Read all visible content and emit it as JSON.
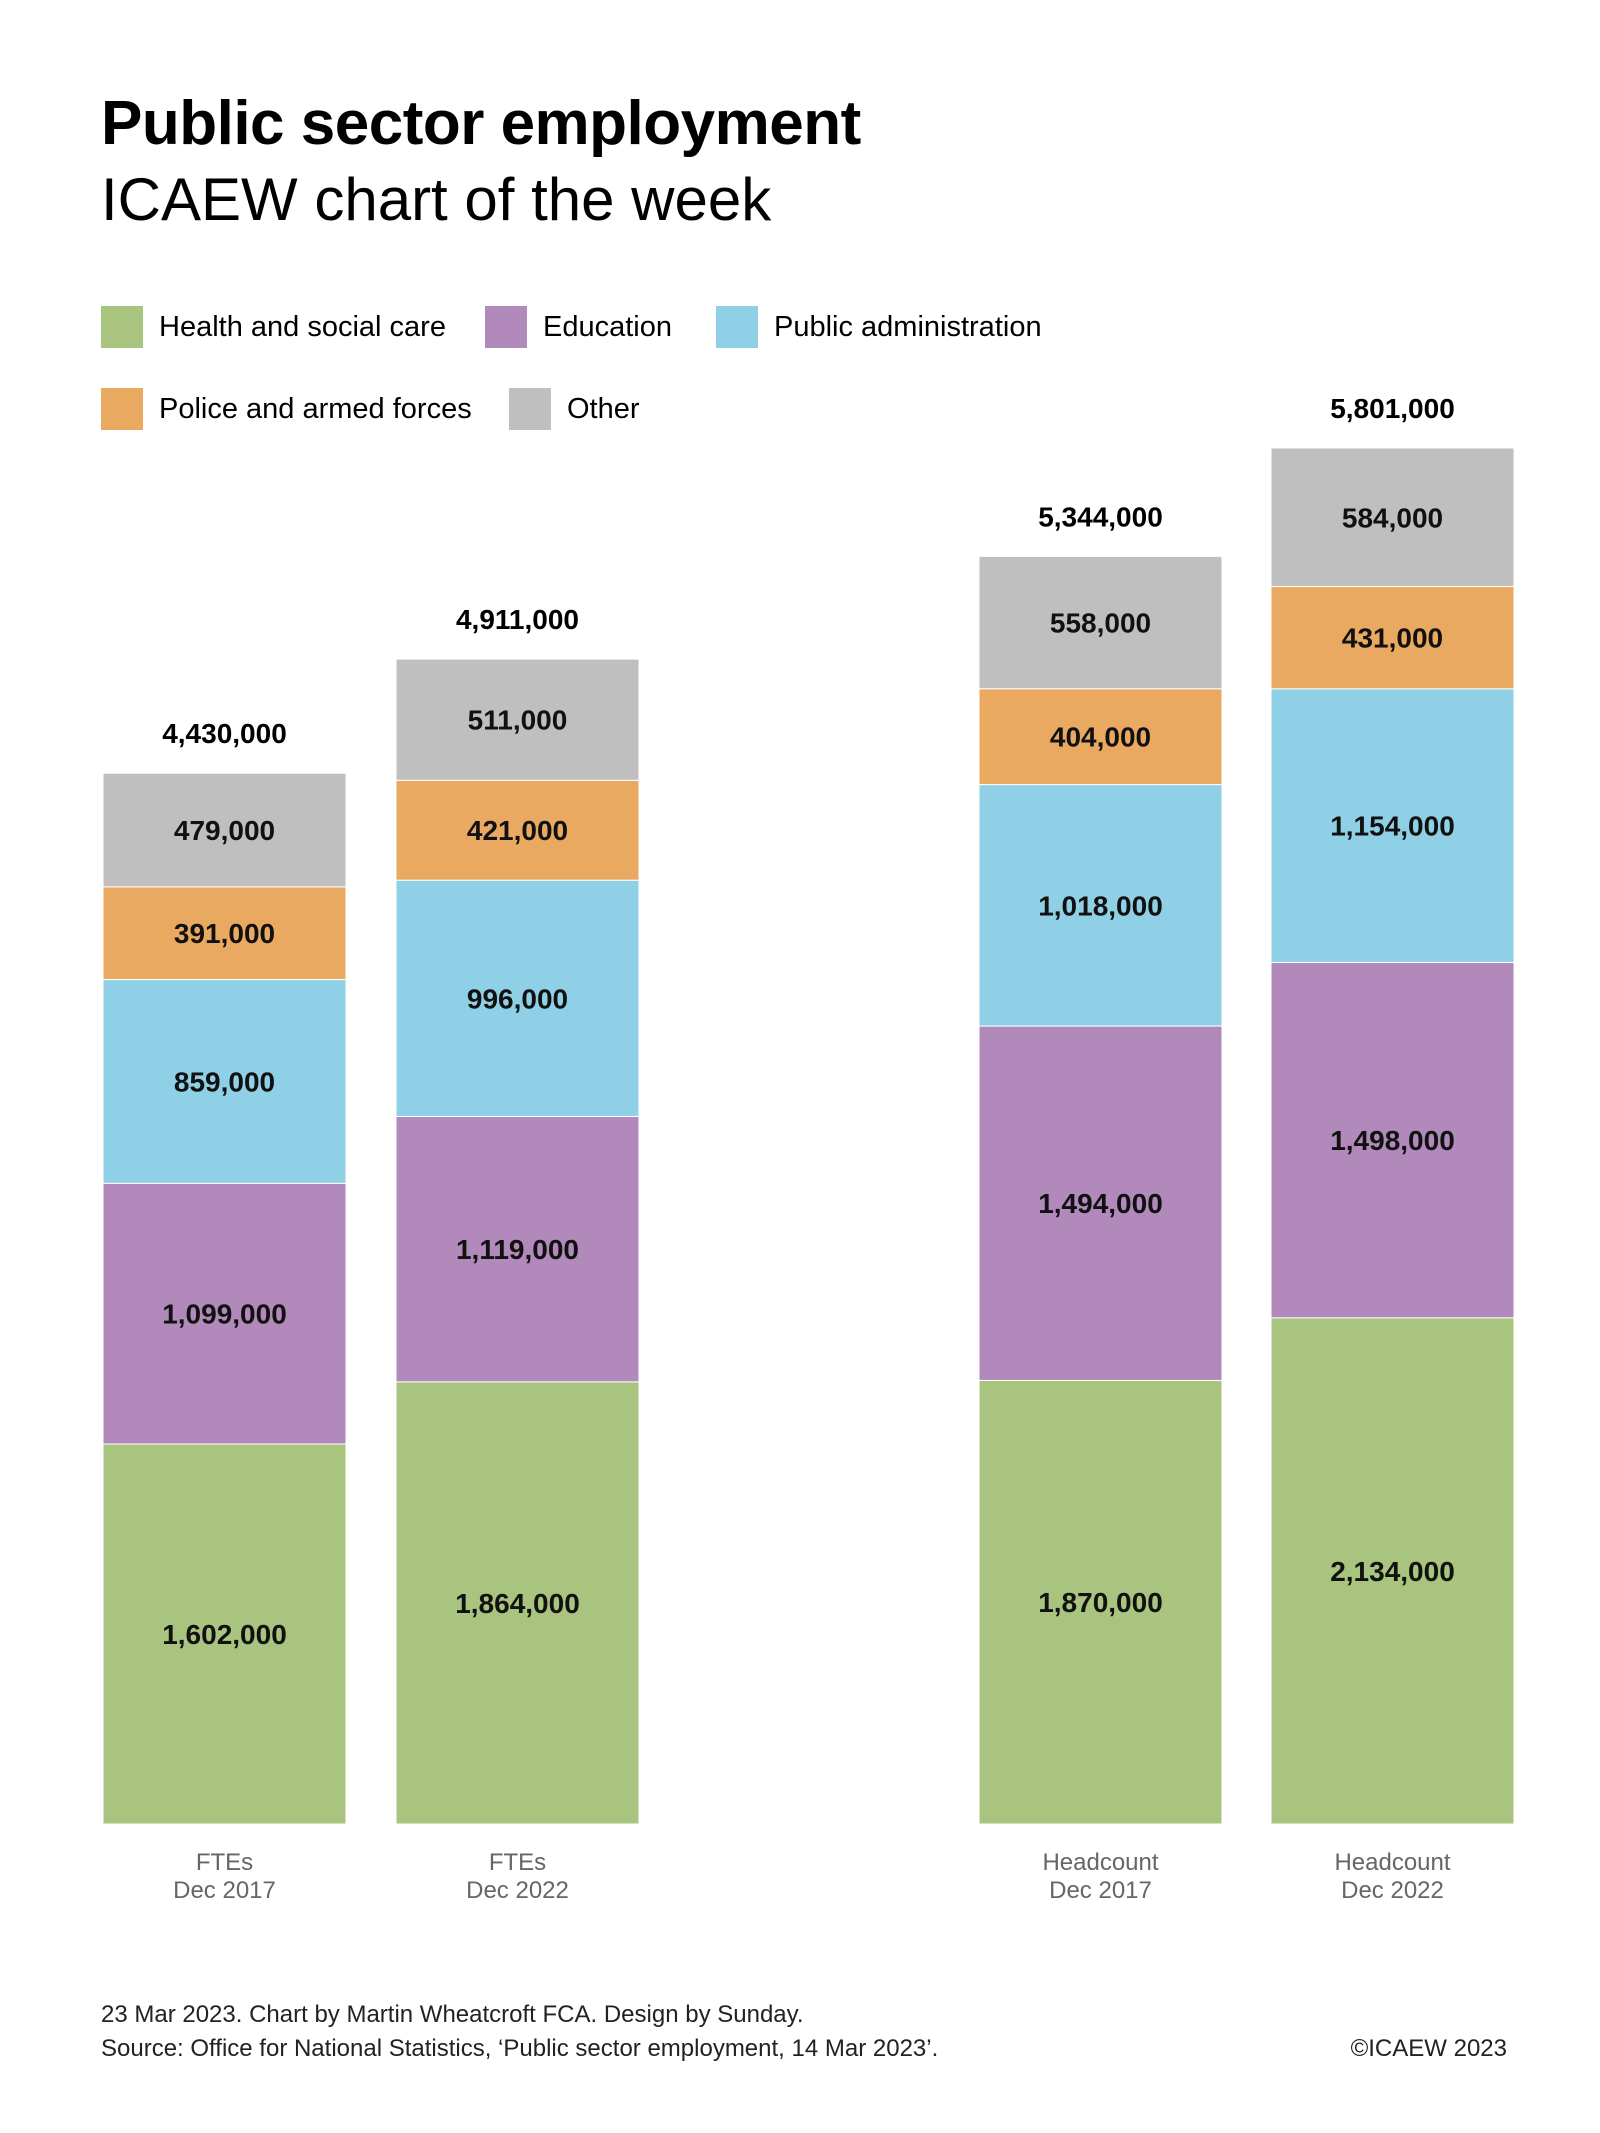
{
  "header": {
    "title": "Public sector employment",
    "subtitle": "ICAEW chart of the week"
  },
  "footer": {
    "line1": "23 Mar 2023.   Chart by Martin Wheatcroft FCA. Design by Sunday.",
    "line2": "Source: Office for National Statistics, ‘Public sector employment, 14 Mar 2023’.",
    "copyright": "©ICAEW 2023"
  },
  "chart_data": {
    "type": "bar",
    "stacked": true,
    "title": "Public sector employment",
    "subtitle": "ICAEW chart of the week",
    "categories": [
      {
        "line1": "FTEs",
        "line2": "Dec 2017"
      },
      {
        "line1": "FTEs",
        "line2": "Dec 2022"
      },
      {
        "line1": "Headcount",
        "line2": "Dec 2017"
      },
      {
        "line1": "Headcount",
        "line2": "Dec 2022"
      }
    ],
    "series": [
      {
        "name": "Health and social care",
        "color": "#a9c47f",
        "values": [
          1602000,
          1864000,
          1870000,
          2134000
        ],
        "labels": [
          "1,602,000",
          "1,864,000",
          "1,870,000",
          "2,134,000"
        ]
      },
      {
        "name": "Education",
        "color": "#b189bb",
        "values": [
          1099000,
          1119000,
          1494000,
          1498000
        ],
        "labels": [
          "1,099,000",
          "1,119,000",
          "1,494,000",
          "1,498,000"
        ]
      },
      {
        "name": "Public administration",
        "color": "#8fd0e6",
        "values": [
          859000,
          996000,
          1018000,
          1154000
        ],
        "labels": [
          "859,000",
          "996,000",
          "1,018,000",
          "1,154,000"
        ]
      },
      {
        "name": "Police and armed forces",
        "color": "#e9a961",
        "values": [
          391000,
          421000,
          404000,
          431000
        ],
        "labels": [
          "391,000",
          "421,000",
          "404,000",
          "431,000"
        ]
      },
      {
        "name": "Other",
        "color": "#c0bfc0",
        "values": [
          479000,
          511000,
          558000,
          584000
        ],
        "labels": [
          "479,000",
          "511,000",
          "558,000",
          "584,000"
        ]
      }
    ],
    "totals": [
      4430000,
      4911000,
      5344000,
      5801000
    ],
    "total_labels": [
      "4,430,000",
      "4,911,000",
      "5,344,000",
      "5,801,000"
    ],
    "ylim": [
      0,
      5801000
    ],
    "grid": false,
    "legend_position": "top-left"
  }
}
